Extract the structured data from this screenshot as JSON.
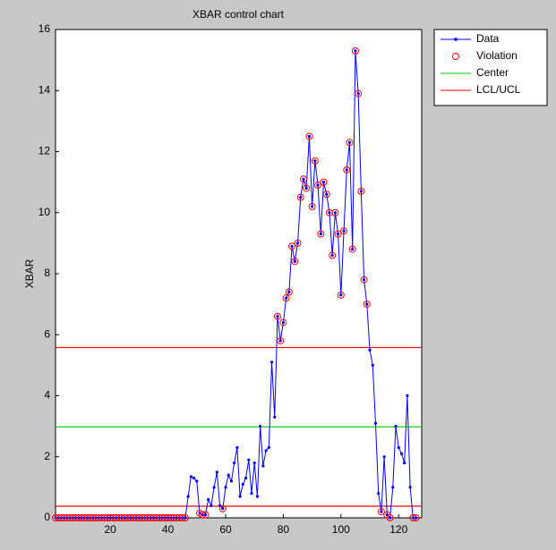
{
  "chart_data": {
    "type": "control",
    "title": "XBAR control chart",
    "y_label": "XBAR",
    "x": [
      1,
      2,
      3,
      4,
      5,
      6,
      7,
      8,
      9,
      10,
      11,
      12,
      13,
      14,
      15,
      16,
      17,
      18,
      19,
      20,
      21,
      22,
      23,
      24,
      25,
      26,
      27,
      28,
      29,
      30,
      31,
      32,
      33,
      34,
      35,
      36,
      37,
      38,
      39,
      40,
      41,
      42,
      43,
      44,
      45,
      46,
      47,
      48,
      49,
      50,
      51,
      52,
      53,
      54,
      55,
      56,
      57,
      58,
      59,
      60,
      61,
      62,
      63,
      64,
      65,
      66,
      67,
      68,
      69,
      70,
      71,
      72,
      73,
      74,
      75,
      76,
      77,
      78,
      79,
      80,
      81,
      82,
      83,
      84,
      85,
      86,
      87,
      88,
      89,
      90,
      91,
      92,
      93,
      94,
      95,
      96,
      97,
      98,
      99,
      100,
      101,
      102,
      103,
      104,
      105,
      106,
      107,
      108,
      109,
      110,
      111,
      112,
      113,
      114,
      115,
      116,
      117,
      118,
      119,
      120,
      121,
      122,
      123,
      124,
      125,
      126
    ],
    "series": [
      {
        "name": "Data",
        "color": "#0000ff",
        "values": [
          0,
          0,
          0,
          0,
          0,
          0,
          0,
          0,
          0,
          0,
          0,
          0,
          0,
          0,
          0,
          0,
          0,
          0,
          0,
          0,
          0,
          0,
          0,
          0,
          0,
          0,
          0,
          0,
          0,
          0,
          0,
          0,
          0,
          0,
          0,
          0,
          0,
          0,
          0,
          0,
          0,
          0,
          0,
          0,
          0,
          0,
          0.7,
          1.35,
          1.3,
          1.2,
          0.15,
          0.1,
          0.1,
          0.6,
          0.4,
          1.0,
          1.5,
          0.4,
          0.3,
          1.0,
          1.4,
          1.2,
          1.8,
          2.3,
          0.7,
          1.1,
          1.3,
          1.9,
          0.8,
          1.8,
          0.7,
          3.0,
          1.7,
          2.2,
          2.3,
          5.1,
          3.3,
          6.6,
          5.8,
          6.4,
          7.2,
          7.4,
          8.9,
          8.4,
          9.0,
          10.5,
          11.1,
          10.8,
          12.5,
          10.2,
          11.7,
          10.9,
          9.3,
          11.0,
          10.6,
          10.0,
          8.6,
          10.0,
          9.3,
          7.3,
          9.4,
          11.4,
          12.3,
          8.8,
          15.3,
          13.9,
          10.7,
          7.8,
          7.0,
          5.5,
          5.0,
          3.1,
          0.8,
          0.2,
          2.0,
          0.1,
          0.0,
          1.0,
          3.0,
          2.3,
          2.1,
          1.8,
          4.0,
          1.0,
          0.0,
          0.0
        ]
      }
    ],
    "violation": {
      "name": "Violation",
      "color": "#ff0000"
    },
    "center": {
      "name": "Center",
      "color": "#00cc00",
      "value": 2.98
    },
    "limits": {
      "name": "LCL/UCL",
      "color": "#ff0000",
      "values": [
        0.38,
        5.58
      ]
    },
    "xlim": [
      1,
      128
    ],
    "ylim": [
      0,
      16
    ],
    "xticks": [
      20,
      40,
      60,
      80,
      100,
      120
    ],
    "yticks": [
      0,
      2,
      4,
      6,
      8,
      10,
      12,
      14,
      16
    ]
  }
}
